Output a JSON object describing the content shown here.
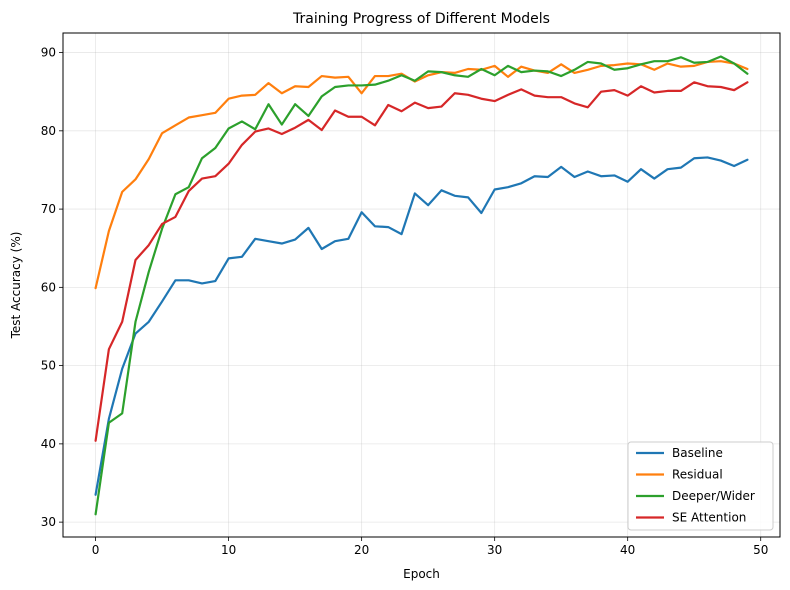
{
  "chart_data": {
    "type": "line",
    "title": "Training Progress of Different Models",
    "xlabel": "Epoch",
    "ylabel": "Test Accuracy (%)",
    "xlim": [
      -2.45,
      51.45
    ],
    "ylim": [
      28.1,
      92.5
    ],
    "xticks": [
      0,
      10,
      20,
      30,
      40,
      50
    ],
    "yticks": [
      30,
      40,
      50,
      60,
      70,
      80,
      90
    ],
    "grid": true,
    "legend_position": "lower-right",
    "x": [
      0,
      1,
      2,
      3,
      4,
      5,
      6,
      7,
      8,
      9,
      10,
      11,
      12,
      13,
      14,
      15,
      16,
      17,
      18,
      19,
      20,
      21,
      22,
      23,
      24,
      25,
      26,
      27,
      28,
      29,
      30,
      31,
      32,
      33,
      34,
      35,
      36,
      37,
      38,
      39,
      40,
      41,
      42,
      43,
      44,
      45,
      46,
      47,
      48,
      49
    ],
    "series": [
      {
        "name": "Baseline",
        "color": "#1f77b4",
        "values": [
          33.5,
          43.2,
          49.6,
          54.1,
          55.6,
          58.2,
          60.9,
          60.9,
          60.5,
          60.8,
          63.7,
          63.9,
          66.2,
          65.9,
          65.6,
          66.1,
          67.6,
          64.9,
          65.9,
          66.2,
          69.6,
          67.8,
          67.7,
          66.8,
          72.0,
          70.5,
          72.4,
          71.7,
          71.5,
          69.5,
          72.5,
          72.8,
          73.3,
          74.2,
          74.1,
          75.4,
          74.1,
          74.8,
          74.2,
          74.3,
          73.5,
          75.1,
          73.9,
          75.1,
          75.3,
          76.5,
          76.6,
          76.2,
          75.5,
          76.3
        ]
      },
      {
        "name": "Residual",
        "color": "#ff7f0e",
        "values": [
          59.9,
          67.2,
          72.2,
          73.8,
          76.4,
          79.7,
          80.7,
          81.7,
          82.0,
          82.3,
          84.1,
          84.5,
          84.6,
          86.1,
          84.8,
          85.7,
          85.6,
          87.0,
          86.8,
          86.9,
          84.8,
          87.0,
          87.0,
          87.3,
          86.3,
          87.1,
          87.5,
          87.4,
          87.9,
          87.8,
          88.3,
          86.9,
          88.2,
          87.7,
          87.4,
          88.5,
          87.4,
          87.8,
          88.3,
          88.4,
          88.6,
          88.5,
          87.8,
          88.6,
          88.2,
          88.3,
          88.8,
          88.9,
          88.6,
          87.9
        ]
      },
      {
        "name": "Deeper/Wider",
        "color": "#2ca02c",
        "values": [
          31.0,
          42.7,
          43.9,
          55.6,
          62.0,
          67.5,
          71.9,
          72.8,
          76.5,
          77.8,
          80.3,
          81.2,
          80.2,
          83.4,
          80.8,
          83.4,
          81.9,
          84.4,
          85.6,
          85.8,
          85.8,
          85.9,
          86.4,
          87.1,
          86.4,
          87.6,
          87.5,
          87.1,
          86.9,
          87.9,
          87.1,
          88.3,
          87.5,
          87.7,
          87.6,
          87.0,
          87.8,
          88.8,
          88.6,
          87.8,
          88.0,
          88.5,
          88.9,
          88.9,
          89.4,
          88.7,
          88.8,
          89.5,
          88.6,
          87.3
        ]
      },
      {
        "name": "SE Attention",
        "color": "#d62728",
        "values": [
          40.4,
          52.1,
          55.6,
          63.5,
          65.4,
          68.1,
          69.0,
          72.3,
          73.9,
          74.2,
          75.8,
          78.2,
          79.9,
          80.3,
          79.6,
          80.4,
          81.4,
          80.1,
          82.6,
          81.8,
          81.8,
          80.7,
          83.3,
          82.5,
          83.6,
          82.9,
          83.1,
          84.8,
          84.6,
          84.1,
          83.8,
          84.6,
          85.3,
          84.5,
          84.3,
          84.3,
          83.5,
          83.0,
          85.0,
          85.2,
          84.5,
          85.7,
          84.9,
          85.1,
          85.1,
          86.2,
          85.7,
          85.6,
          85.2,
          86.2
        ]
      }
    ]
  }
}
